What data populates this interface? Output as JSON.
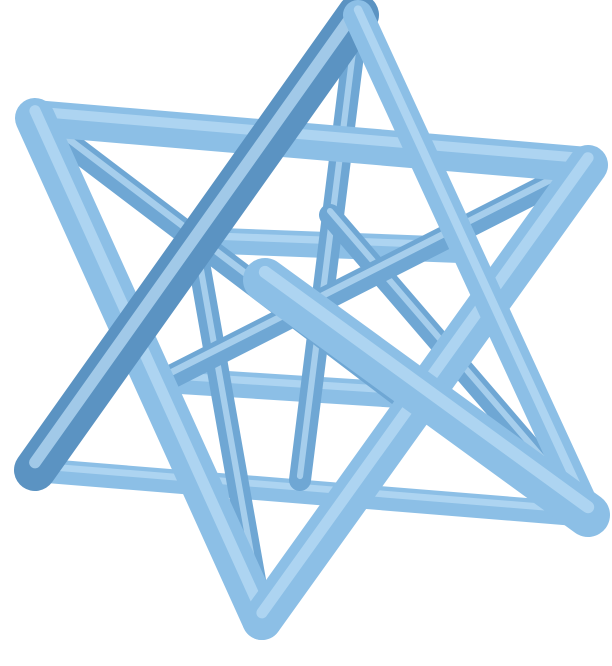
{
  "image": {
    "subject": "stella-octangula-wireframe",
    "colors": {
      "background": "#ffffff",
      "face": "#8cbfe6",
      "shade": "#6fa7d4",
      "dark": "#5b93c2",
      "highlight": "#b9dcf5"
    }
  }
}
